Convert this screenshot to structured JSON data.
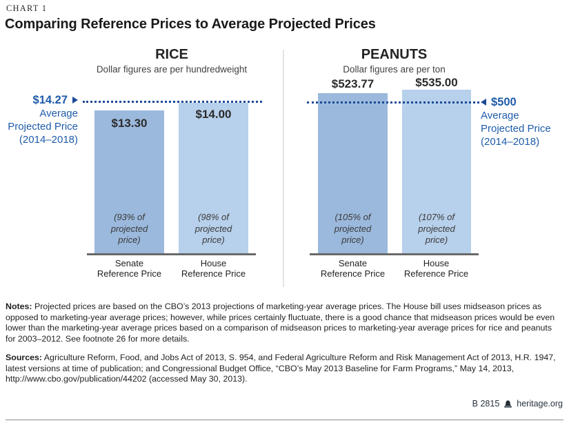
{
  "header": {
    "chart_label": "CHART 1",
    "title": "Comparing Reference Prices to Average Projected Prices"
  },
  "chart_data": [
    {
      "type": "bar",
      "title": "RICE",
      "subtitle": "Dollar figures are per hundredweight",
      "categories": [
        "Senate Reference Price",
        "House Reference Price"
      ],
      "category_labels": [
        "Senate\nReference Price",
        "House\nReference Price"
      ],
      "values": [
        13.3,
        14.0
      ],
      "value_labels": [
        "$13.30",
        "$14.00"
      ],
      "percent_of_projected": [
        93,
        98
      ],
      "percent_labels": [
        "(93% of\nprojected\nprice)",
        "(98% of\nprojected\nprice)"
      ],
      "bar_colors": [
        "#9bb9dd",
        "#b7d0eb"
      ],
      "reference_line": {
        "value": 14.27,
        "label": "$14.27",
        "caption": "Average\nProjected Price\n(2014–2018)",
        "label_side": "left"
      },
      "ylim": [
        0,
        15
      ],
      "grid": false,
      "legend": false
    },
    {
      "type": "bar",
      "title": "PEANUTS",
      "subtitle": "Dollar figures are per ton",
      "categories": [
        "Senate Reference Price",
        "House Reference Price"
      ],
      "category_labels": [
        "Senate\nReference Price",
        "House\nReference Price"
      ],
      "values": [
        523.77,
        535.0
      ],
      "value_labels": [
        "$523.77",
        "$535.00"
      ],
      "percent_of_projected": [
        105,
        107
      ],
      "percent_labels": [
        "(105% of\nprojected\nprice)",
        "(107% of\nprojected\nprice)"
      ],
      "bar_colors": [
        "#9bb9dd",
        "#b7d0eb"
      ],
      "reference_line": {
        "value": 500,
        "label": "$500",
        "caption": "Average\nProjected Price\n(2014–2018)",
        "label_side": "right"
      },
      "ylim": [
        0,
        550
      ],
      "grid": false,
      "legend": false
    }
  ],
  "accent_colors": {
    "senate_bar": "#9bb9dd",
    "house_bar": "#b7d0eb",
    "reference_blue": "#1e5ba9",
    "dotted_line": "#1b4a96"
  },
  "notes": {
    "label": "Notes:",
    "text": "Projected prices are based on the CBO’s 2013 projections of marketing-year average prices. The House bill uses midseason prices as opposed to marketing-year average prices; however, while prices certainly fluctuate, there is a good chance that midseason prices would be even lower than the marketing-year average prices based on a comparison of midseason prices to marketing-year average prices for rice and peanuts for 2003–2012. See footnote 26 for more details."
  },
  "sources": {
    "label": "Sources:",
    "text": "Agriculture Reform, Food, and Jobs Act of 2013, S. 954, and Federal Agriculture Reform and Risk Management Act of 2013, H.R. 1947, latest versions at time of publication; and Congressional Budget Office, “CBO’s May 2013 Baseline for Farm Programs,” May 14, 2013, http://www.cbo.gov/publication/44202 (accessed May 30, 2013)."
  },
  "footer": {
    "report_id": "B 2815",
    "site": "heritage.org",
    "logo": "liberty-bell-icon"
  }
}
